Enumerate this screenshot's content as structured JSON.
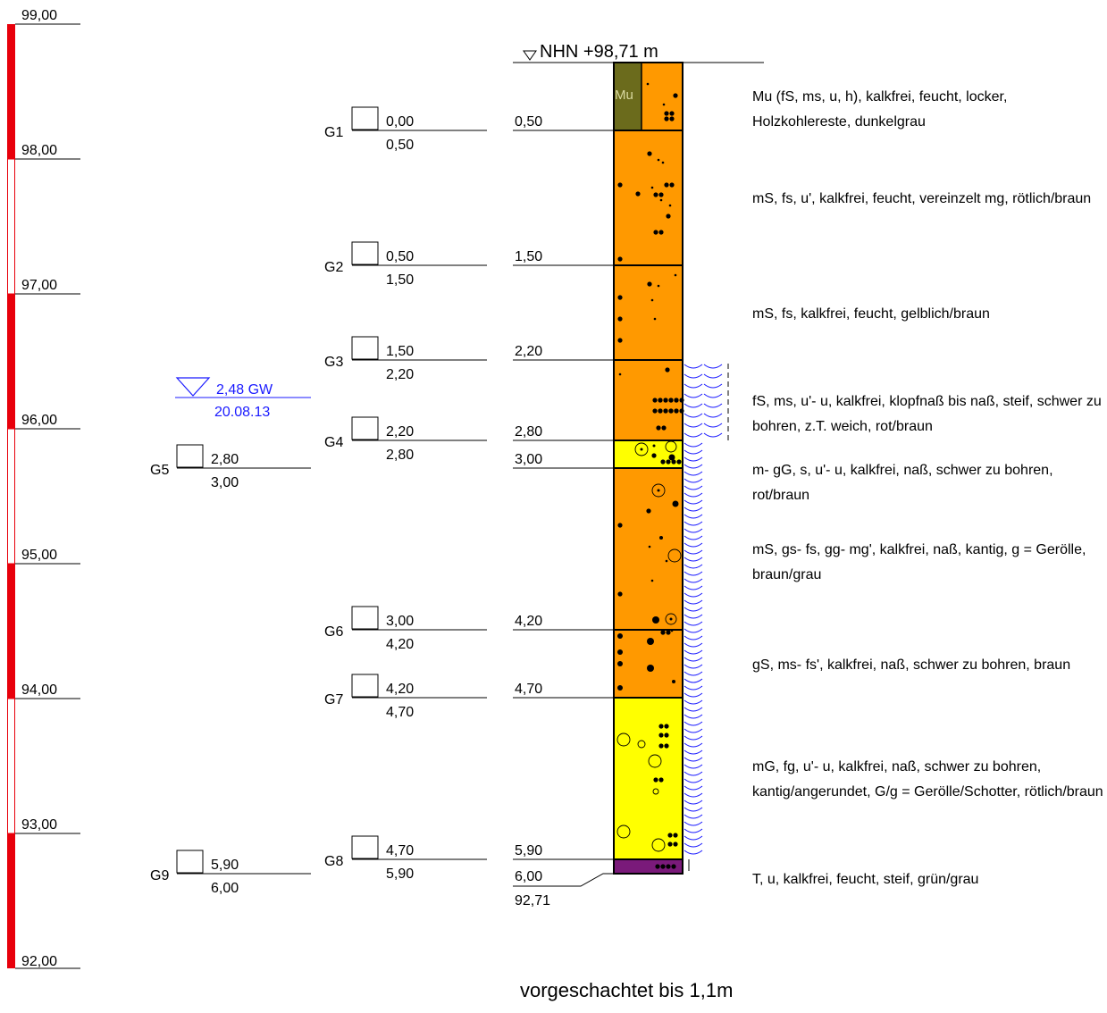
{
  "header": {
    "ground_label": "NHN +98,71 m"
  },
  "elevation_scale": {
    "labels": [
      "99,00",
      "98,00",
      "97,00",
      "96,00",
      "95,00",
      "94,00",
      "93,00",
      "92,00"
    ],
    "bar_color": "#e8000b"
  },
  "groundwater": {
    "depth_label": "2,48 GW",
    "date": "20.08.13",
    "color": "#1a1aff"
  },
  "samples": [
    {
      "id": "G1",
      "top": "0,00",
      "bottom": "0,50"
    },
    {
      "id": "G2",
      "top": "0,50",
      "bottom": "1,50"
    },
    {
      "id": "G3",
      "top": "1,50",
      "bottom": "2,20"
    },
    {
      "id": "G4",
      "top": "2,20",
      "bottom": "2,80"
    },
    {
      "id": "G5",
      "top": "2,80",
      "bottom": "3,00"
    },
    {
      "id": "G6",
      "top": "3,00",
      "bottom": "4,20"
    },
    {
      "id": "G7",
      "top": "4,20",
      "bottom": "4,70"
    },
    {
      "id": "G8",
      "top": "4,70",
      "bottom": "5,90"
    },
    {
      "id": "G9",
      "top": "5,90",
      "bottom": "6,00"
    }
  ],
  "layer_depths": [
    "0,50",
    "1,50",
    "2,20",
    "2,80",
    "3,00",
    "4,20",
    "4,70",
    "5,90",
    "6,00"
  ],
  "final_elevation": "92,71",
  "layers": [
    {
      "code": "Mu",
      "color": "#6b6b1c",
      "description": "Mu (fS, ms, u, h), kalkfrei, feucht, locker, Holzkohlereste, dunkelgrau"
    },
    {
      "color": "#ff9900",
      "description": "mS, fs, u', kalkfrei, feucht, vereinzelt mg, rötlich/braun"
    },
    {
      "color": "#ff9900",
      "description": "mS, fs, kalkfrei, feucht, gelblich/braun"
    },
    {
      "color": "#ff9900",
      "description": "fS, ms, u'- u, kalkfrei, klopfnaß bis naß, steif, schwer zu bohren, z.T. weich, rot/braun"
    },
    {
      "color": "#ffff00",
      "description": "m- gG, s, u'- u, kalkfrei, naß, schwer zu bohren, rot/braun"
    },
    {
      "color": "#ff9900",
      "description": "mS, gs- fs, gg- mg', kalkfrei, naß, kantig, g = Gerölle, braun/grau"
    },
    {
      "color": "#ff9900",
      "description": "gS, ms- fs', kalkfrei, naß, schwer zu bohren, braun"
    },
    {
      "color": "#ffff00",
      "description": "mG, fg, u'- u, kalkfrei, naß, schwer zu bohren, kantig/angerundet, G/g = Gerölle/Schotter, rötlich/braun"
    },
    {
      "color": "#7a1a7a",
      "description": "T, u, kalkfrei, feucht, steif, grün/grau"
    }
  ],
  "footer_note": "vorgeschachtet bis 1,1m"
}
